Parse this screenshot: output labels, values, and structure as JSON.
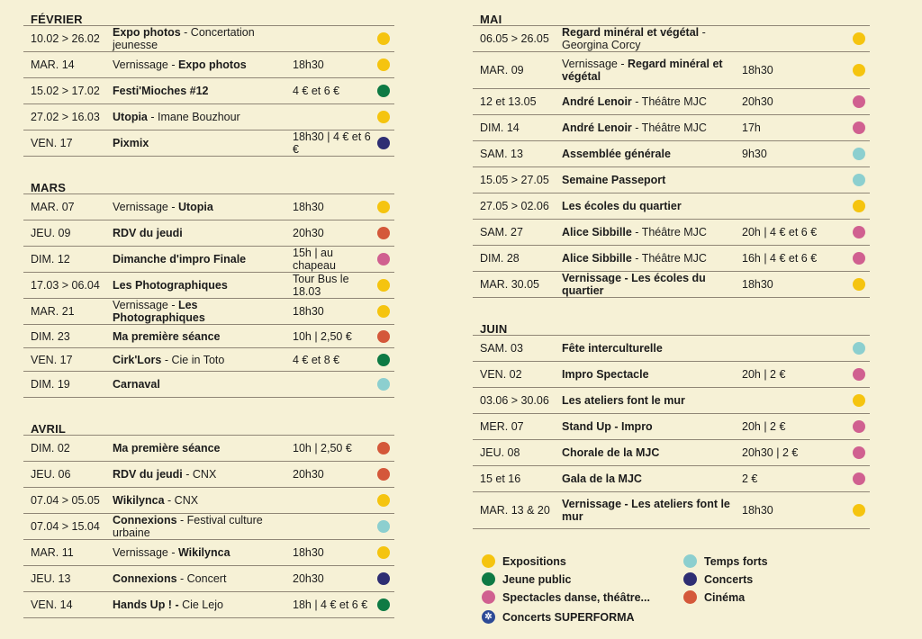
{
  "colors": {
    "expositions": "#f5c40f",
    "jeune_public": "#0e7a44",
    "spectacles": "#d06090",
    "temps_forts": "#8ccfcf",
    "concerts": "#2e2e73",
    "cinema": "#d4583a",
    "superforma": "#2c4a96"
  },
  "months": {
    "fevrier": "FÉVRIER",
    "mars": "MARS",
    "avril": "AVRIL",
    "mai": "MAI",
    "juin": "JUIN"
  },
  "fevrier": [
    {
      "date": "10.02 > 26.02",
      "pre": "",
      "title": "Expo photos",
      "sub": " - Concertation jeunesse",
      "info": "",
      "cat": "expositions"
    },
    {
      "date": "MAR. 14",
      "pre": "Vernissage - ",
      "title": "Expo photos",
      "sub": "",
      "info": "18h30",
      "cat": "expositions"
    },
    {
      "date": "15.02 > 17.02",
      "pre": "",
      "title": "Festi'Mioches #12",
      "sub": "",
      "info": "4 € et 6 €",
      "cat": "jeune_public"
    },
    {
      "date": "27.02 > 16.03",
      "pre": "",
      "title": "Utopia",
      "sub": " - Imane Bouzhour",
      "info": "",
      "cat": "expositions"
    },
    {
      "date": "VEN. 17",
      "pre": "",
      "title": "Pixmix",
      "sub": "",
      "info": "18h30 | 4 € et 6 €",
      "cat": "concerts"
    }
  ],
  "mars": [
    {
      "date": "MAR. 07",
      "pre": "Vernissage - ",
      "title": "Utopia",
      "sub": "",
      "info": "18h30",
      "cat": "expositions"
    },
    {
      "date": "JEU. 09",
      "pre": "",
      "title": "RDV du jeudi",
      "sub": "",
      "info": "20h30",
      "cat": "cinema"
    },
    {
      "date": "DIM. 12",
      "pre": "",
      "title": "Dimanche d'impro Finale",
      "sub": "",
      "info": "15h | au chapeau",
      "cat": "spectacles"
    },
    {
      "date": "17.03 > 06.04",
      "pre": "",
      "title": "Les Photographiques",
      "sub": "",
      "info": "Tour Bus le 18.03",
      "cat": "expositions"
    },
    {
      "date": "MAR. 21",
      "pre": "Vernissage - ",
      "title": "Les Photographiques",
      "sub": "",
      "info": "18h30",
      "cat": "expositions"
    },
    {
      "date": "DIM. 23",
      "pre": "",
      "title": "Ma première séance",
      "sub": "",
      "info": "10h | 2,50 €",
      "cat": "cinema",
      "short": true
    },
    {
      "date": "VEN. 17",
      "pre": "",
      "title": "Cirk'Lors",
      "sub": " - Cie in Toto",
      "info": "4 € et 8 €",
      "cat": "jeune_public",
      "short": true
    },
    {
      "date": "DIM. 19",
      "pre": "",
      "title": "Carnaval",
      "sub": "",
      "info": "",
      "cat": "temps_forts"
    }
  ],
  "avril": [
    {
      "date": "DIM. 02",
      "pre": "",
      "title": "Ma première séance",
      "sub": "",
      "info": "10h | 2,50 €",
      "cat": "cinema"
    },
    {
      "date": "JEU. 06",
      "pre": "",
      "title": "RDV du jeudi",
      "sub": " - CNX",
      "info": "20h30",
      "cat": "cinema"
    },
    {
      "date": "07.04 > 05.05",
      "pre": "",
      "title": "Wikilynca",
      "sub": " - CNX",
      "info": "",
      "cat": "expositions"
    },
    {
      "date": "07.04 > 15.04",
      "pre": "",
      "title": "Connexions",
      "sub": " - Festival culture urbaine",
      "info": "",
      "cat": "temps_forts"
    },
    {
      "date": "MAR. 11",
      "pre": "Vernissage - ",
      "title": "Wikilynca",
      "sub": "",
      "info": "18h30",
      "cat": "expositions"
    },
    {
      "date": "JEU. 13",
      "pre": "",
      "title": "Connexions",
      "sub": " - Concert",
      "info": "20h30",
      "cat": "concerts"
    },
    {
      "date": "VEN. 14",
      "pre": "",
      "title": "Hands Up ! -",
      "sub": " Cie Lejo",
      "info": "18h | 4 € et 6 €",
      "cat": "jeune_public"
    }
  ],
  "mai": [
    {
      "date": "06.05 > 26.05",
      "pre": "",
      "title": "Regard minéral et végétal",
      "sub": " - Georgina Corcy",
      "info": "",
      "cat": "expositions"
    },
    {
      "date": "MAR. 09",
      "pre": "Vernissage - ",
      "title": "Regard minéral et végétal",
      "sub": "",
      "info": "18h30",
      "cat": "expositions",
      "tall": true
    },
    {
      "date": "12 et 13.05",
      "pre": "",
      "title": "André Lenoir",
      "sub": " - Théâtre MJC",
      "info": "20h30",
      "cat": "spectacles"
    },
    {
      "date": "DIM. 14",
      "pre": "",
      "title": "André Lenoir",
      "sub": " - Théâtre MJC",
      "info": "17h",
      "cat": "spectacles"
    },
    {
      "date": "SAM. 13",
      "pre": "",
      "title": "Assemblée générale",
      "sub": "",
      "info": "9h30",
      "cat": "temps_forts"
    },
    {
      "date": "15.05 > 27.05",
      "pre": "",
      "title": "Semaine Passeport",
      "sub": "",
      "info": "",
      "cat": "temps_forts"
    },
    {
      "date": "27.05 > 02.06",
      "pre": "",
      "title": "Les écoles du quartier",
      "sub": "",
      "info": "",
      "cat": "expositions"
    },
    {
      "date": "SAM. 27",
      "pre": "",
      "title": "Alice Sibbille",
      "sub": " - Théâtre MJC",
      "info": "20h | 4 € et 6 €",
      "cat": "spectacles"
    },
    {
      "date": "DIM. 28",
      "pre": "",
      "title": "Alice Sibbille",
      "sub": " - Théâtre MJC",
      "info": "16h | 4 € et 6 €",
      "cat": "spectacles"
    },
    {
      "date": "MAR. 30.05",
      "pre": "",
      "title": "Vernissage - Les écoles du quartier",
      "sub": "",
      "info": "18h30",
      "cat": "expositions"
    }
  ],
  "juin": [
    {
      "date": "SAM. 03",
      "pre": "",
      "title": "Fête interculturelle",
      "sub": "",
      "info": "",
      "cat": "temps_forts"
    },
    {
      "date": "VEN. 02",
      "pre": "",
      "title": "Impro Spectacle",
      "sub": "",
      "info": "20h | 2 €",
      "cat": "spectacles"
    },
    {
      "date": "03.06 > 30.06",
      "pre": "",
      "title": "Les ateliers font le mur",
      "sub": "",
      "info": "",
      "cat": "expositions"
    },
    {
      "date": "MER. 07",
      "pre": "",
      "title": "Stand Up - Impro",
      "sub": "",
      "info": "20h | 2 €",
      "cat": "spectacles"
    },
    {
      "date": "JEU. 08",
      "pre": "",
      "title": "Chorale de la MJC",
      "sub": "",
      "info": "20h30 | 2 €",
      "cat": "spectacles"
    },
    {
      "date": "15 et 16",
      "pre": "",
      "title": "Gala de la MJC",
      "sub": "",
      "info": "2 €",
      "cat": "spectacles"
    },
    {
      "date": "MAR. 13 & 20",
      "pre": "",
      "title": "Vernissage - Les ateliers font le mur",
      "sub": "",
      "info": "18h30",
      "cat": "expositions",
      "tall": true
    }
  ],
  "legend": [
    {
      "label": "Expositions",
      "cat": "expositions",
      "icon": "dot"
    },
    {
      "label": "Temps forts",
      "cat": "temps_forts",
      "icon": "dot"
    },
    {
      "label": "Jeune public",
      "cat": "jeune_public",
      "icon": "dot"
    },
    {
      "label": "Concerts",
      "cat": "concerts",
      "icon": "dot"
    },
    {
      "label": "Spectacles danse, théâtre...",
      "cat": "spectacles",
      "icon": "dot"
    },
    {
      "label": "Cinéma",
      "cat": "cinema",
      "icon": "dot"
    },
    {
      "label": "Concerts SUPERFORMA",
      "cat": "superforma",
      "icon": "star"
    }
  ]
}
